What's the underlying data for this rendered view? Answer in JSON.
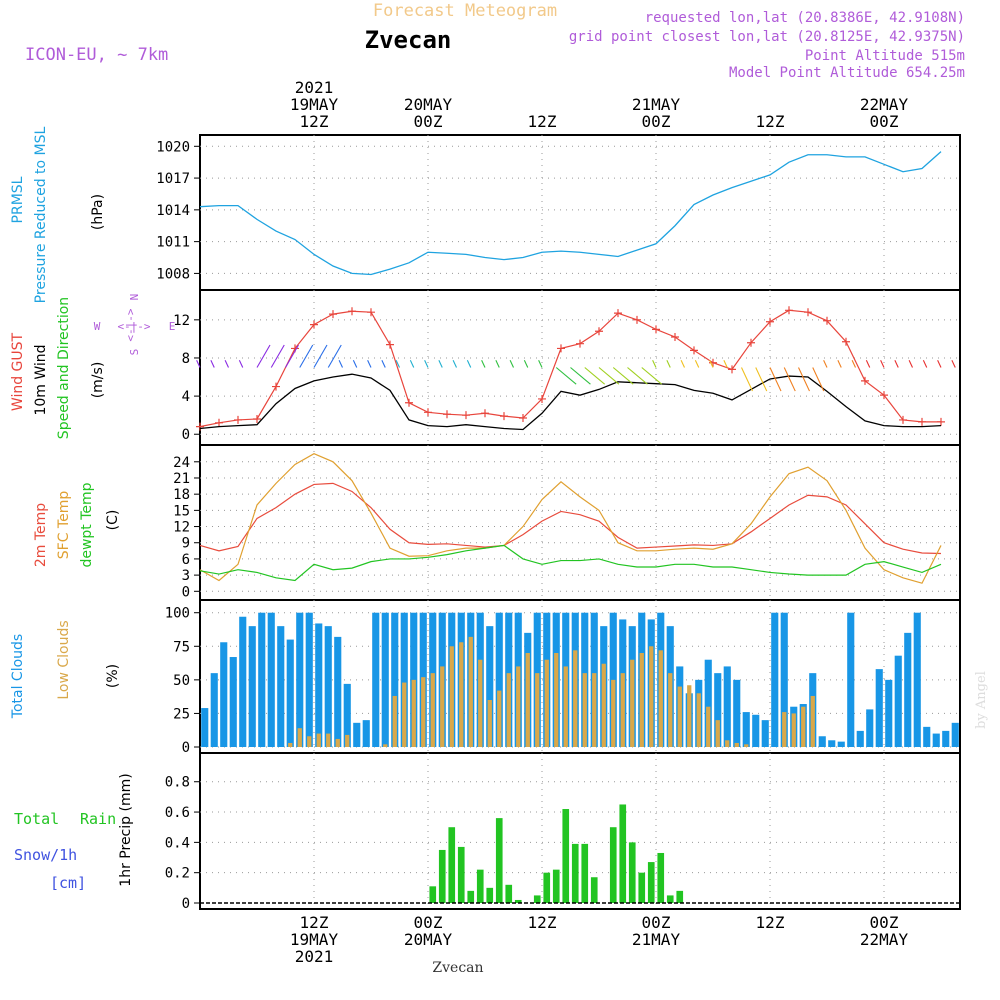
{
  "header": {
    "title": "Forecast Meteogram",
    "station": "Zvecan",
    "model": "ICON-EU, ~ 7km",
    "requested": "requested lon,lat (20.8386E, 42.9108N)",
    "gridpoint": "grid point closest lon,lat (20.8125E, 42.9375N)",
    "point_alt": "Point Altitude 515m",
    "model_alt": "Model Point Altitude 654.25m",
    "credit": "by Angel",
    "footer_station": "Zvecan"
  },
  "time_axis": {
    "top_labels": [
      {
        "lines": [
          "2021",
          "19MAY",
          "12Z"
        ]
      },
      {
        "lines": [
          "20MAY",
          "00Z"
        ]
      },
      {
        "lines": [
          "12Z"
        ]
      },
      {
        "lines": [
          "21MAY",
          "00Z"
        ]
      },
      {
        "lines": [
          "12Z"
        ]
      },
      {
        "lines": [
          "22MAY",
          "00Z"
        ]
      }
    ],
    "bottom_labels": [
      {
        "lines": [
          "12Z",
          "19MAY",
          "2021"
        ]
      },
      {
        "lines": [
          "00Z",
          "20MAY"
        ]
      },
      {
        "lines": [
          "12Z"
        ]
      },
      {
        "lines": [
          "00Z",
          "21MAY"
        ]
      },
      {
        "lines": [
          "12Z"
        ]
      },
      {
        "lines": [
          "00Z",
          "22MAY"
        ]
      }
    ]
  },
  "panel_labels": {
    "pressure": [
      "PRMSL",
      "Pressure Reduced to MSL",
      "(hPa)"
    ],
    "wind": [
      "Wind GUST",
      "10m Wind",
      "Speed and Direction",
      "(m/s)"
    ],
    "compass": {
      "n": "N",
      "s": "S",
      "w": "W",
      "e": "E",
      "arrows": "<-|->"
    },
    "temp": [
      "2m Temp",
      "SFC Temp",
      "dewpt Temp",
      "(C)"
    ],
    "cloud": [
      "Total Clouds",
      "Low Clouds",
      "(%)"
    ],
    "precip": {
      "total": "Total",
      "rain": "Rain",
      "snow": "Snow/1h",
      "cm": "[cm]",
      "unit": "1hr Precip (mm)"
    }
  },
  "colors": {
    "pressure": "#1fa3e0",
    "gust": "#e8453c",
    "wind": "#000000",
    "temp2m": "#e84c3d",
    "sfc": "#e0a030",
    "dewpt": "#22c422",
    "total_cloud": "#1896e6",
    "low_cloud": "#d9a84a",
    "rain": "#22c422",
    "snow": "#3f52e0",
    "label_purple": "#b05cd9",
    "title_gold": "#f2c98a"
  },
  "chart_data": [
    {
      "type": "line",
      "name": "pressure",
      "ylabel": "(hPa)",
      "x_hours": [
        0,
        2,
        4,
        6,
        8,
        10,
        12,
        14,
        16,
        18,
        20,
        22,
        24,
        26,
        28,
        30,
        32,
        34,
        36,
        38,
        40,
        42,
        44,
        46,
        48,
        50,
        52,
        54,
        56,
        58,
        60,
        62,
        64,
        66,
        68,
        70,
        72,
        74,
        76,
        78
      ],
      "values": [
        1014.3,
        1014.4,
        1014.4,
        1013.1,
        1012,
        1011.2,
        1009.8,
        1008.7,
        1008.0,
        1007.9,
        1008.4,
        1009.0,
        1010.0,
        1009.9,
        1009.8,
        1009.5,
        1009.3,
        1009.5,
        1010.0,
        1010.1,
        1010.0,
        1009.8,
        1009.6,
        1010.2,
        1010.8,
        1012.5,
        1014.5,
        1015.4,
        1016.1,
        1016.7,
        1017.3,
        1018.5,
        1019.2,
        1019.2,
        1019.0,
        1019.0,
        1018.3,
        1017.6,
        1017.9,
        1019.5
      ],
      "yticks": [
        1008,
        1011,
        1014,
        1017,
        1020
      ],
      "ylim": [
        1007,
        1020.5
      ]
    },
    {
      "type": "line",
      "name": "wind",
      "ylabel": "(m/s)",
      "yticks": [
        0,
        4,
        8,
        12
      ],
      "ylim": [
        -0.5,
        14.5
      ],
      "x_hours": [
        0,
        2,
        4,
        6,
        8,
        10,
        12,
        14,
        16,
        18,
        20,
        22,
        24,
        26,
        28,
        30,
        32,
        34,
        36,
        38,
        40,
        42,
        44,
        46,
        48,
        50,
        52,
        54,
        56,
        58,
        60,
        62,
        64,
        66,
        68,
        70,
        72,
        74,
        76,
        78
      ],
      "series": [
        {
          "name": "Wind GUST",
          "values": [
            0.8,
            1.2,
            1.5,
            1.6,
            5.0,
            9.0,
            11.5,
            12.6,
            12.9,
            12.8,
            9.4,
            3.3,
            2.3,
            2.1,
            2.0,
            2.2,
            1.9,
            1.7,
            3.7,
            9.0,
            9.5,
            10.8,
            12.7,
            12.0,
            11.0,
            10.2,
            8.8,
            7.5,
            6.8,
            9.6,
            11.8,
            13.0,
            12.8,
            11.9,
            9.7,
            5.6,
            4.1,
            1.5,
            1.3,
            1.3
          ]
        },
        {
          "name": "10m Wind",
          "values": [
            0.6,
            0.8,
            0.9,
            1.0,
            3.2,
            4.8,
            5.6,
            6.0,
            6.3,
            5.9,
            4.6,
            1.5,
            0.9,
            0.8,
            1.0,
            0.8,
            0.6,
            0.5,
            2.2,
            4.5,
            4.1,
            4.7,
            5.5,
            5.4,
            5.3,
            5.2,
            4.6,
            4.3,
            3.6,
            4.7,
            5.8,
            6.1,
            6.0,
            4.5,
            2.9,
            1.4,
            0.9,
            0.8,
            0.8,
            0.9
          ]
        }
      ]
    },
    {
      "type": "line",
      "name": "temperature",
      "ylabel": "(C)",
      "yticks": [
        0,
        3,
        6,
        9,
        12,
        15,
        18,
        21,
        24
      ],
      "ylim": [
        -0.5,
        26
      ],
      "x_hours": [
        0,
        2,
        4,
        6,
        8,
        10,
        12,
        14,
        16,
        18,
        20,
        22,
        24,
        26,
        28,
        30,
        32,
        34,
        36,
        38,
        40,
        42,
        44,
        46,
        48,
        50,
        52,
        54,
        56,
        58,
        60,
        62,
        64,
        66,
        68,
        70,
        72,
        74,
        76,
        78
      ],
      "series": [
        {
          "name": "2m Temp",
          "values": [
            8.5,
            7.5,
            8.3,
            13.5,
            15.5,
            18.0,
            19.8,
            20.0,
            18.5,
            15.5,
            11.5,
            9.0,
            8.7,
            8.8,
            8.5,
            8.2,
            8.5,
            10.5,
            13.0,
            14.8,
            14.2,
            13.0,
            10.0,
            8.0,
            8.2,
            8.4,
            8.6,
            8.5,
            8.8,
            11.0,
            13.5,
            16.0,
            17.8,
            17.5,
            16.0,
            12.5,
            9.0,
            7.8,
            7.1,
            7.0
          ]
        },
        {
          "name": "SFC Temp",
          "values": [
            4.0,
            2.0,
            5.0,
            16.0,
            20.0,
            23.5,
            25.5,
            24.0,
            20.5,
            14.5,
            8.0,
            6.5,
            6.6,
            7.5,
            8.0,
            8.0,
            8.5,
            12.0,
            17.0,
            20.3,
            17.5,
            15.0,
            9.0,
            7.5,
            7.5,
            7.8,
            8.0,
            7.8,
            8.8,
            12.5,
            17.5,
            21.8,
            23.0,
            20.5,
            15.0,
            8.0,
            4.0,
            2.5,
            1.5,
            8.5
          ]
        },
        {
          "name": "dewpt Temp",
          "values": [
            3.8,
            3.2,
            4.0,
            3.5,
            2.5,
            2.0,
            5.0,
            4.0,
            4.3,
            5.5,
            6.0,
            6.0,
            6.3,
            6.8,
            7.5,
            8.0,
            8.5,
            6.0,
            5.0,
            5.7,
            5.7,
            6.0,
            5.0,
            4.5,
            4.5,
            5.0,
            5.0,
            4.5,
            4.5,
            4.0,
            3.5,
            3.2,
            3.0,
            3.0,
            3.0,
            5.0,
            5.5,
            4.5,
            3.5,
            5.0
          ]
        }
      ]
    },
    {
      "type": "bar",
      "name": "clouds",
      "ylabel": "(%)",
      "yticks": [
        0,
        25,
        50,
        75,
        100
      ],
      "ylim": [
        0,
        105
      ],
      "x_hours": [
        0,
        1,
        2,
        3,
        4,
        5,
        6,
        7,
        8,
        9,
        10,
        11,
        12,
        13,
        14,
        15,
        16,
        17,
        18,
        19,
        20,
        21,
        22,
        23,
        24,
        25,
        26,
        27,
        28,
        29,
        30,
        31,
        32,
        33,
        34,
        35,
        36,
        37,
        38,
        39,
        40,
        41,
        42,
        43,
        44,
        45,
        46,
        47,
        48,
        49,
        50,
        51,
        52,
        53,
        54,
        55,
        56,
        57,
        58,
        59,
        60,
        61,
        62,
        63,
        64,
        65,
        66,
        67,
        68,
        69,
        70,
        71,
        72,
        73,
        74,
        75,
        76,
        77,
        78,
        79
      ],
      "series": [
        {
          "name": "Total Clouds",
          "values": [
            29,
            55,
            78,
            67,
            97,
            90,
            100,
            100,
            90,
            80,
            100,
            100,
            92,
            90,
            82,
            47,
            18,
            20,
            100,
            100,
            100,
            100,
            100,
            100,
            100,
            100,
            100,
            100,
            100,
            100,
            90,
            100,
            100,
            100,
            85,
            100,
            100,
            100,
            100,
            100,
            100,
            100,
            90,
            100,
            95,
            90,
            100,
            95,
            100,
            90,
            60,
            40,
            50,
            65,
            55,
            60,
            50,
            26,
            24,
            20,
            100,
            100,
            30,
            32,
            55,
            8,
            5,
            4,
            100,
            12,
            28,
            58,
            50,
            68,
            85,
            100,
            15,
            10,
            12,
            18
          ]
        },
        {
          "name": "Low Clouds",
          "values": [
            0,
            0,
            0,
            0,
            0,
            0,
            0,
            0,
            0,
            3,
            14,
            8,
            10,
            10,
            6,
            9,
            0,
            0,
            0,
            2,
            38,
            48,
            50,
            52,
            55,
            60,
            75,
            78,
            82,
            65,
            35,
            42,
            55,
            60,
            70,
            55,
            65,
            70,
            60,
            72,
            55,
            55,
            62,
            50,
            55,
            65,
            70,
            75,
            72,
            55,
            45,
            46,
            40,
            30,
            20,
            5,
            3,
            2,
            0,
            0,
            0,
            26,
            25,
            30,
            38,
            0,
            0,
            0,
            0,
            0,
            0,
            0,
            0,
            0,
            0,
            0,
            0,
            0,
            0,
            0
          ]
        }
      ]
    },
    {
      "type": "bar",
      "name": "precip",
      "ylabel": "1hr Precip (mm)",
      "yticks": [
        0,
        0.2,
        0.4,
        0.6,
        0.8
      ],
      "ylim": [
        0,
        0.95
      ],
      "x_hours": [
        24,
        25,
        26,
        27,
        28,
        29,
        30,
        31,
        32,
        33,
        34,
        35,
        36,
        37,
        38,
        39,
        40,
        41,
        42,
        43,
        44,
        45,
        46,
        47,
        48,
        49,
        50
      ],
      "series": [
        {
          "name": "Total Rain",
          "values": [
            0.11,
            0.35,
            0.5,
            0.37,
            0.08,
            0.22,
            0.1,
            0.56,
            0.12,
            0.02,
            0.0,
            0.05,
            0.2,
            0.22,
            0.62,
            0.39,
            0.39,
            0.17,
            0.0,
            0.5,
            0.65,
            0.4,
            0.2,
            0.27,
            0.33,
            0.05,
            0.08
          ]
        }
      ]
    }
  ]
}
